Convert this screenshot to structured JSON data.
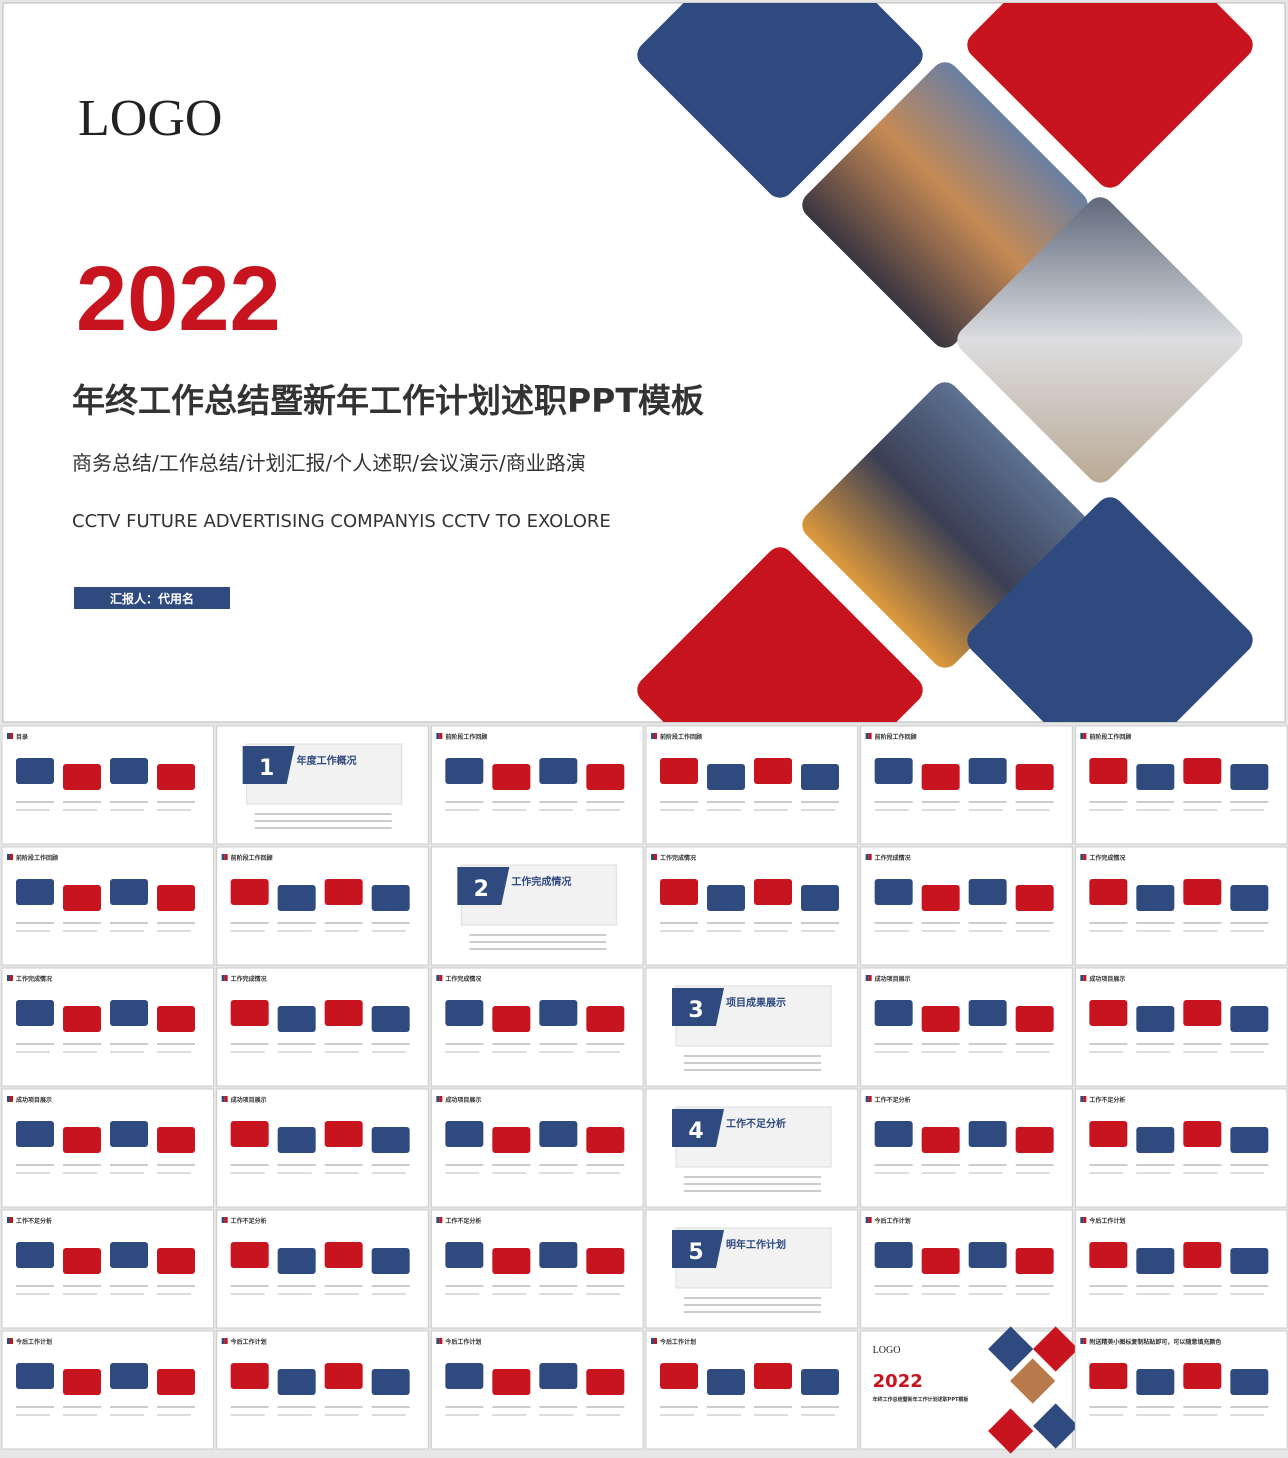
{
  "cover": {
    "logo": "LOGO",
    "year": "2022",
    "title": "年终工作总结暨新年工作计划述职PPT模板",
    "subtitle": "商务总结/工作总结/计划汇报/个人述职/会议演示/商业路演",
    "english": "CCTV FUTURE ADVERTISING COMPANYIS CCTV TO EXOLORE",
    "reporter": "汇报人：代用名"
  },
  "thumbnails": [
    {
      "title": "目录"
    },
    {
      "number": "1",
      "title": "年度工作概况"
    },
    {
      "title": "前阶段工作回顾"
    },
    {
      "title": "前阶段工作回顾"
    },
    {
      "title": "前阶段工作回顾"
    },
    {
      "title": "前阶段工作回顾"
    },
    {
      "title": "前阶段工作回顾"
    },
    {
      "title": "前阶段工作回顾"
    },
    {
      "number": "2",
      "title": "工作完成情况"
    },
    {
      "title": "工作完成情况"
    },
    {
      "title": "工作完成情况"
    },
    {
      "title": "工作完成情况"
    },
    {
      "title": "工作完成情况"
    },
    {
      "title": "工作完成情况"
    },
    {
      "title": "工作完成情况"
    },
    {
      "number": "3",
      "title": "项目成果展示"
    },
    {
      "title": "成功项目展示"
    },
    {
      "title": "成功项目展示"
    },
    {
      "title": "成功项目展示"
    },
    {
      "title": "成功项目展示"
    },
    {
      "title": "成功项目展示"
    },
    {
      "number": "4",
      "title": "工作不足分析"
    },
    {
      "title": "工作不足分析"
    },
    {
      "title": "工作不足分析"
    },
    {
      "title": "工作不足分析"
    },
    {
      "title": "工作不足分析"
    },
    {
      "title": "工作不足分析"
    },
    {
      "number": "5",
      "title": "明年工作计划"
    },
    {
      "title": "今后工作计划"
    },
    {
      "title": "今后工作计划"
    },
    {
      "title": "今后工作计划"
    },
    {
      "title": "今后工作计划"
    },
    {
      "title": "今后工作计划"
    },
    {
      "title": "今后工作计划"
    },
    {
      "logo": "LOGO",
      "year": "2022",
      "title": "年终工作总结暨新年工作计划述职PPT模板"
    },
    {
      "title": "附送精美小图标复制粘贴即可，可以随意填充颜色"
    }
  ]
}
